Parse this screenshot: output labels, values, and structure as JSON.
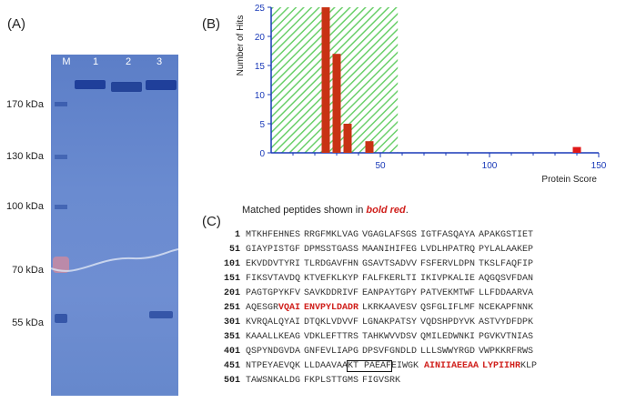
{
  "panel_a": {
    "label": "(A)",
    "lanes": [
      "M",
      "1",
      "2",
      "3"
    ],
    "markers": [
      "170 kDa",
      "130 kDa",
      "100 kDa",
      "70 kDa",
      "55 kDa"
    ]
  },
  "panel_b": {
    "label": "(B)",
    "ylabel": "Number of Hits",
    "xlabel": "Protein Score",
    "colors": {
      "bar": "#c83214",
      "hatch": "#6cd06c",
      "axis": "#1a3ab8"
    }
  },
  "chart_data": {
    "type": "bar",
    "xlim": [
      0,
      150
    ],
    "ylim": [
      0,
      25
    ],
    "xticks": [
      "50",
      "100",
      "150"
    ],
    "yticks": [
      "0",
      "5",
      "10",
      "15",
      "20",
      "25"
    ],
    "bars": [
      {
        "x": 25,
        "y": 25
      },
      {
        "x": 30,
        "y": 17
      },
      {
        "x": 35,
        "y": 5
      },
      {
        "x": 45,
        "y": 2
      },
      {
        "x": 140,
        "y": 1
      }
    ],
    "threshold_region": [
      0,
      58
    ]
  },
  "panel_c": {
    "label": "(C)",
    "caption_prefix": "Matched peptides shown in ",
    "caption_highlight": "bold red",
    "caption_suffix": ".",
    "rows": [
      {
        "num": "1",
        "blocks": [
          "MTKHFEHNES",
          "RRGFMKLVAG",
          "VGAGLAFSGS",
          "IGTFASQAYA",
          "APAKGSTIET"
        ]
      },
      {
        "num": "51",
        "blocks": [
          "GIAYPISTGF",
          "DPMSSTGASS",
          "MAANIHIFEG",
          "LVDLHPATRQ",
          "PYLALAAKEP"
        ]
      },
      {
        "num": "101",
        "blocks": [
          "EKVDDVTYRI",
          "TLRDGAVFHN",
          "GSAVTSADVV",
          "FSFERVLDPN",
          "TKSLFAQFIP"
        ]
      },
      {
        "num": "151",
        "blocks": [
          "FIKSVTAVDQ",
          "KTVEFKLKYP",
          "FALFKERLTI",
          "IKIVPKALIE",
          "AQGQSVFDAN"
        ]
      },
      {
        "num": "201",
        "blocks": [
          "PAGTGPYKFV",
          "SAVKDDRIVF",
          "EANPAYTGPY",
          "PATVEKMTWF",
          "LLFDDAARVA"
        ]
      },
      {
        "num": "251",
        "blocks": [
          "AQESGR",
          "LKRKAAVESV",
          "QSFGLIFLMF",
          "NCEKAPFNNK"
        ],
        "hl_251": [
          "VQAI",
          "ENVPYLDADR"
        ]
      },
      {
        "num": "301",
        "blocks": [
          "KVRQALQYAI",
          "DTQKLVDVVF",
          "LGNAKPATSY",
          "VQDSHPDYVK",
          "ASTVYDFDPK"
        ]
      },
      {
        "num": "351",
        "blocks": [
          "KAAALLKEAG",
          "VDKLEFTTRS",
          "TAHKWVVDSV",
          "QMILEDWNKI",
          "PGVKVTNIAS"
        ]
      },
      {
        "num": "401",
        "blocks": [
          "QSPYNDGVDA",
          "GNFEVLIAPG",
          "DPSVFGNDLD",
          "LLLSWWYRGD",
          "VWPKKRFRWS"
        ]
      },
      {
        "num": "451",
        "blocks": [
          "NTPEYAEVQK",
          "LLDAAVAA",
          "KT PAEAF",
          "EIWGK",
          "AINIIAEEAA",
          "LYPIIHR",
          "KLP"
        ]
      },
      {
        "num": "501",
        "blocks": [
          "TAWSNKALDG",
          "FKPLSTTGMS",
          "FIGVSRK"
        ]
      }
    ]
  }
}
